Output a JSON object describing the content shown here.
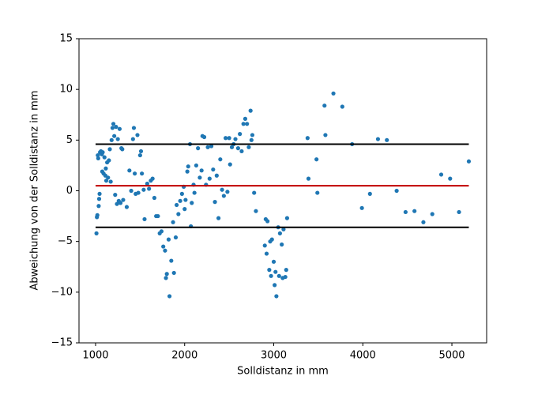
{
  "chart_data": {
    "type": "scatter",
    "xlabel": "Solldistanz in mm",
    "ylabel": "Abweichung von der Solldistanz in mm",
    "xlim": [
      814,
      5390
    ],
    "ylim": [
      -15,
      15
    ],
    "xticks": [
      1000,
      2000,
      3000,
      4000,
      5000
    ],
    "yticks": [
      {
        "value": -15,
        "label": "−15"
      },
      {
        "value": -10,
        "label": "−10"
      },
      {
        "value": -5,
        "label": "−5"
      },
      0,
      5,
      10,
      15
    ],
    "color": "#1f77b4",
    "x": [
      1010,
      1015,
      1020,
      1025,
      1030,
      1035,
      1040,
      1045,
      1050,
      1060,
      1070,
      1075,
      1080,
      1090,
      1100,
      1110,
      1115,
      1120,
      1130,
      1140,
      1150,
      1160,
      1170,
      1180,
      1190,
      1200,
      1210,
      1220,
      1230,
      1240,
      1250,
      1260,
      1270,
      1280,
      1290,
      1300,
      1310,
      1350,
      1380,
      1400,
      1420,
      1430,
      1440,
      1450,
      1470,
      1480,
      1500,
      1510,
      1520,
      1540,
      1550,
      1580,
      1600,
      1620,
      1640,
      1660,
      1680,
      1700,
      1720,
      1740,
      1760,
      1780,
      1790,
      1800,
      1820,
      1830,
      1850,
      1870,
      1880,
      1900,
      1910,
      1930,
      1950,
      1970,
      1990,
      2000,
      2010,
      2030,
      2040,
      2060,
      2070,
      2080,
      2100,
      2110,
      2130,
      2150,
      2170,
      2190,
      2200,
      2220,
      2240,
      2260,
      2280,
      2300,
      2320,
      2340,
      2360,
      2380,
      2400,
      2420,
      2440,
      2460,
      2480,
      2500,
      2510,
      2530,
      2550,
      2570,
      2600,
      2620,
      2640,
      2660,
      2680,
      2700,
      2720,
      2740,
      2750,
      2760,
      2780,
      2800,
      2900,
      2910,
      2920,
      2930,
      2950,
      2960,
      2970,
      2980,
      3000,
      3010,
      3020,
      3030,
      3050,
      3060,
      3070,
      3090,
      3100,
      3110,
      3130,
      3140,
      3150,
      3380,
      3390,
      3480,
      3490,
      3570,
      3580,
      3670,
      3770,
      3880,
      3990,
      4080,
      4170,
      4270,
      4380,
      4480,
      4580,
      4680,
      4780,
      4880,
      4980,
      5080,
      5190
    ],
    "values": [
      -4.2,
      -2.6,
      -2.4,
      3.5,
      3.2,
      -1.5,
      -0.8,
      -0.3,
      3.8,
      3.9,
      3.6,
      1.9,
      3.8,
      1.7,
      3.3,
      1.5,
      2.2,
      1.0,
      2.8,
      1.3,
      3.0,
      4.1,
      0.9,
      5.0,
      6.2,
      6.6,
      5.4,
      -0.4,
      6.3,
      -1.3,
      5.1,
      -1.0,
      6.1,
      -1.2,
      4.2,
      4.1,
      -0.9,
      -1.6,
      2.0,
      0.0,
      5.1,
      6.2,
      1.7,
      -0.3,
      5.5,
      -0.2,
      3.5,
      3.9,
      1.7,
      0.1,
      -2.8,
      0.7,
      0.2,
      1.0,
      1.2,
      -0.7,
      -2.5,
      -2.5,
      -4.2,
      -4.0,
      -5.5,
      -5.9,
      -8.6,
      -8.2,
      -4.8,
      -10.4,
      -6.9,
      -3.1,
      -8.1,
      -4.6,
      -1.4,
      -2.3,
      -1.0,
      -0.3,
      0.4,
      -1.8,
      -0.9,
      1.9,
      2.4,
      4.6,
      -3.5,
      -1.2,
      0.6,
      -0.2,
      2.5,
      4.2,
      1.3,
      2.0,
      5.4,
      5.3,
      0.6,
      4.3,
      1.2,
      4.4,
      2.1,
      -1.1,
      1.5,
      -2.7,
      3.1,
      0.1,
      -0.5,
      5.2,
      -0.1,
      5.2,
      2.6,
      4.3,
      4.6,
      5.1,
      4.2,
      5.6,
      3.9,
      6.6,
      7.1,
      6.6,
      4.3,
      7.9,
      5.0,
      5.5,
      -0.2,
      -2.0,
      -5.4,
      -2.8,
      -6.2,
      -3.0,
      -7.8,
      -5.0,
      -8.4,
      -4.8,
      -7.0,
      -9.3,
      -8.0,
      -10.4,
      -3.6,
      -8.4,
      -4.2,
      -5.3,
      -8.6,
      -3.8,
      -8.5,
      -7.8,
      -2.7,
      5.2,
      1.2,
      3.1,
      -0.2,
      8.4,
      5.5,
      9.6,
      8.3,
      4.6,
      -1.7,
      -0.3,
      5.1,
      5.0,
      0.0,
      -2.1,
      -2.0,
      -3.1,
      -2.3,
      1.6,
      1.2,
      -2.1,
      2.9
    ],
    "lines": [
      {
        "x": [
          1000,
          5190
        ],
        "values": [
          4.6,
          4.6
        ],
        "color": "#000000"
      },
      {
        "x": [
          1000,
          5190
        ],
        "values": [
          0.5,
          0.5
        ],
        "color": "#c00000"
      },
      {
        "x": [
          1000,
          5190
        ],
        "values": [
          -3.6,
          -3.6
        ],
        "color": "#000000"
      }
    ]
  }
}
